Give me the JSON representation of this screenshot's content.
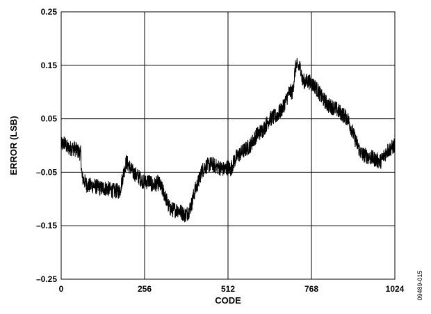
{
  "chart_data": {
    "type": "line",
    "title": "",
    "xlabel": "CODE",
    "ylabel": "ERROR (LSB)",
    "xlim": [
      0,
      1024
    ],
    "ylim": [
      -0.25,
      0.25
    ],
    "x_ticks": [
      0,
      256,
      512,
      768,
      1024
    ],
    "x_tick_labels": [
      "0",
      "256",
      "512",
      "768",
      "1024"
    ],
    "y_ticks": [
      0.25,
      0.15,
      0.05,
      -0.05,
      -0.15,
      -0.25
    ],
    "y_tick_labels": [
      "0.25",
      "0.15",
      "0.05",
      "–0.05",
      "–0.15",
      "–0.25"
    ],
    "grid": true,
    "legend": "none",
    "line_color": "#000000",
    "series": [
      {
        "x": [
          0,
          10,
          20,
          40,
          60,
          64,
          70,
          80,
          100,
          120,
          140,
          160,
          180,
          192,
          200,
          210,
          220,
          240,
          256,
          270,
          280,
          300,
          320,
          330,
          340,
          360,
          380,
          390,
          400,
          410,
          420,
          430,
          440,
          460,
          480,
          500,
          512,
          520,
          530,
          540,
          560,
          580,
          600,
          620,
          640,
          660,
          680,
          700,
          710,
          720,
          736,
          740,
          760,
          780,
          800,
          820,
          840,
          860,
          880,
          900,
          920,
          940,
          960,
          980,
          1000,
          1024
        ],
        "y": [
          0.0,
          0.005,
          -0.005,
          -0.005,
          -0.015,
          -0.06,
          -0.065,
          -0.075,
          -0.075,
          -0.08,
          -0.08,
          -0.085,
          -0.085,
          -0.05,
          -0.03,
          -0.04,
          -0.05,
          -0.06,
          -0.07,
          -0.065,
          -0.075,
          -0.07,
          -0.095,
          -0.115,
          -0.12,
          -0.12,
          -0.13,
          -0.125,
          -0.11,
          -0.085,
          -0.07,
          -0.05,
          -0.04,
          -0.035,
          -0.04,
          -0.045,
          -0.04,
          -0.045,
          -0.03,
          -0.02,
          -0.01,
          0.0,
          0.02,
          0.03,
          0.05,
          0.055,
          0.07,
          0.1,
          0.1,
          0.15,
          0.145,
          0.12,
          0.12,
          0.11,
          0.09,
          0.075,
          0.07,
          0.06,
          0.05,
          0.015,
          -0.015,
          -0.02,
          -0.025,
          -0.03,
          -0.01,
          0.0
        ]
      }
    ],
    "figure_id": "09489-015"
  }
}
